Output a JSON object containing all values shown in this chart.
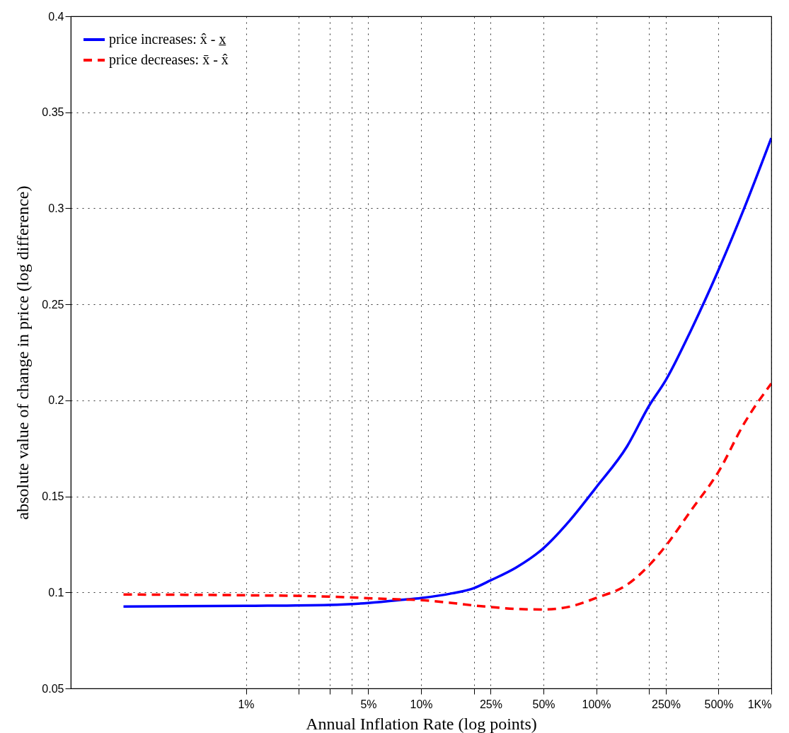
{
  "chart_data": {
    "type": "line",
    "xlabel": "Annual Inflation Rate (log points)",
    "ylabel": "absolute value of change in price (log difference)",
    "log": "x",
    "grid": true,
    "legend": "top left",
    "xlim": [
      0.1,
      1000
    ],
    "ylim": [
      0.05,
      0.4
    ],
    "xticks": [
      {
        "value": 1,
        "label": "1%"
      },
      {
        "value": 2,
        "label": null
      },
      {
        "value": 3,
        "label": null
      },
      {
        "value": 4,
        "label": null
      },
      {
        "value": 5,
        "label": "5%"
      },
      {
        "value": 10,
        "label": "10%"
      },
      {
        "value": 20,
        "label": null
      },
      {
        "value": 25,
        "label": "25%"
      },
      {
        "value": 50,
        "label": "50%"
      },
      {
        "value": 100,
        "label": "100%"
      },
      {
        "value": 200,
        "label": null
      },
      {
        "value": 250,
        "label": "250%"
      },
      {
        "value": 500,
        "label": "500%"
      },
      {
        "value": 1000,
        "label": "1K%"
      }
    ],
    "yticks": [
      0.05,
      0.1,
      0.15,
      0.2,
      0.25,
      0.3,
      0.35,
      0.4
    ],
    "x": [
      0.2,
      1,
      3,
      5,
      8,
      10,
      15,
      20,
      25,
      35,
      50,
      70,
      100,
      150,
      200,
      250,
      350,
      500,
      700,
      1000
    ],
    "series": [
      {
        "name": "price increases: x̂ - x̲",
        "color": "#0000ff",
        "line_style": "solid",
        "values": [
          0.0926,
          0.093,
          0.0935,
          0.0945,
          0.0962,
          0.0971,
          0.0995,
          0.1022,
          0.1063,
          0.113,
          0.123,
          0.137,
          0.1547,
          0.176,
          0.197,
          0.2106,
          0.237,
          0.268,
          0.3,
          0.3366
        ]
      },
      {
        "name": "price decreases: x̄ - x̂",
        "color": "#ff0000",
        "line_style": "dashed",
        "values": [
          0.0989,
          0.0985,
          0.0978,
          0.097,
          0.0963,
          0.096,
          0.0945,
          0.0932,
          0.0924,
          0.0914,
          0.0911,
          0.0925,
          0.0971,
          0.104,
          0.114,
          0.1243,
          0.143,
          0.1629,
          0.188,
          0.2088
        ]
      }
    ]
  }
}
